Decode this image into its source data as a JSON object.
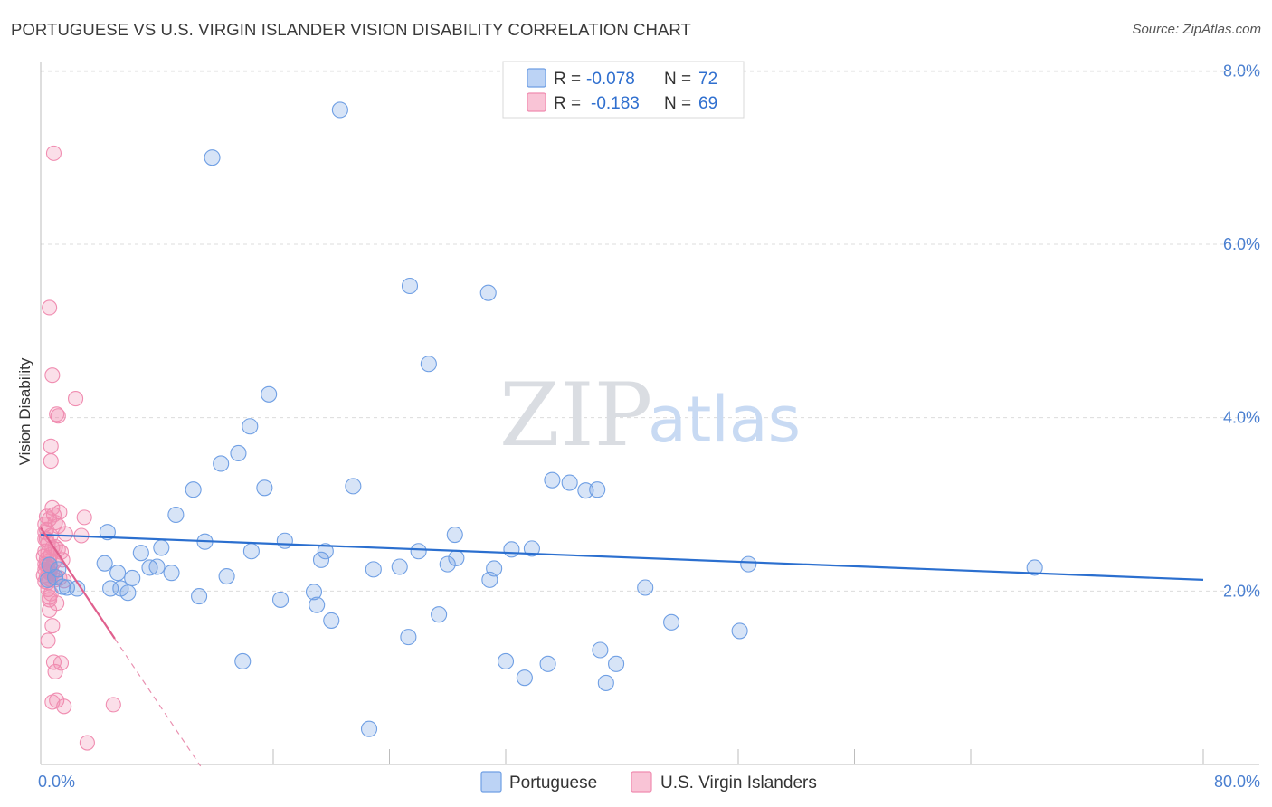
{
  "header": {
    "title": "PORTUGUESE VS U.S. VIRGIN ISLANDER VISION DISABILITY CORRELATION CHART",
    "source": "Source: ZipAtlas.com"
  },
  "watermark": {
    "zip": "ZIP",
    "atlas": "atlas"
  },
  "legend_top": {
    "rows": [
      {
        "r_label": "R =",
        "r_value": "-0.078",
        "n_label": "N =",
        "n_value": "72"
      },
      {
        "r_label": "R =",
        "r_value": "-0.183",
        "n_label": "N =",
        "n_value": "69"
      }
    ]
  },
  "chart_data": {
    "type": "scatter",
    "title": "PORTUGUESE VS U.S. VIRGIN ISLANDER VISION DISABILITY CORRELATION CHART",
    "xlabel": "",
    "ylabel": "Vision Disability",
    "xlim": [
      0,
      80
    ],
    "ylim": [
      0,
      8.4
    ],
    "x_tick_labels": [
      "0.0%",
      "80.0%"
    ],
    "y_ticks": [
      2,
      4,
      6,
      8
    ],
    "y_tick_labels": [
      "2.0%",
      "4.0%",
      "6.0%",
      "8.0%"
    ],
    "legend": [
      "Portuguese",
      "U.S. Virgin Islanders"
    ],
    "colors": {
      "portuguese": "#6f9fe4",
      "virgin": "#f08cb0",
      "portuguese_line": "#2b6fcf",
      "virgin_line": "#e0608e"
    },
    "series": [
      {
        "name": "Portuguese",
        "trend": {
          "x": [
            0,
            80
          ],
          "y": [
            2.65,
            2.13
          ]
        },
        "points": [
          [
            20.6,
            7.55
          ],
          [
            11.8,
            7.0
          ],
          [
            25.4,
            5.52
          ],
          [
            30.8,
            5.44
          ],
          [
            26.7,
            4.62
          ],
          [
            15.7,
            4.27
          ],
          [
            14.4,
            3.9
          ],
          [
            13.6,
            3.59
          ],
          [
            12.4,
            3.47
          ],
          [
            15.4,
            3.19
          ],
          [
            21.5,
            3.21
          ],
          [
            35.2,
            3.28
          ],
          [
            36.4,
            3.25
          ],
          [
            37.5,
            3.16
          ],
          [
            38.3,
            3.17
          ],
          [
            10.5,
            3.17
          ],
          [
            9.3,
            2.88
          ],
          [
            4.6,
            2.68
          ],
          [
            28.5,
            2.65
          ],
          [
            11.3,
            2.57
          ],
          [
            16.8,
            2.58
          ],
          [
            8.3,
            2.5
          ],
          [
            19.6,
            2.46
          ],
          [
            14.5,
            2.46
          ],
          [
            26.0,
            2.46
          ],
          [
            32.4,
            2.48
          ],
          [
            33.8,
            2.49
          ],
          [
            6.9,
            2.44
          ],
          [
            19.3,
            2.36
          ],
          [
            28.6,
            2.38
          ],
          [
            4.4,
            2.32
          ],
          [
            7.5,
            2.27
          ],
          [
            8.0,
            2.28
          ],
          [
            22.9,
            2.25
          ],
          [
            24.7,
            2.28
          ],
          [
            31.2,
            2.26
          ],
          [
            28.0,
            2.31
          ],
          [
            48.7,
            2.31
          ],
          [
            68.4,
            2.27
          ],
          [
            5.3,
            2.21
          ],
          [
            9.0,
            2.21
          ],
          [
            12.8,
            2.17
          ],
          [
            6.3,
            2.15
          ],
          [
            30.9,
            2.13
          ],
          [
            1.0,
            2.16
          ],
          [
            0.5,
            2.13
          ],
          [
            1.5,
            2.05
          ],
          [
            1.8,
            2.04
          ],
          [
            4.8,
            2.03
          ],
          [
            2.5,
            2.03
          ],
          [
            5.5,
            2.03
          ],
          [
            6.0,
            1.98
          ],
          [
            18.8,
            1.99
          ],
          [
            10.9,
            1.94
          ],
          [
            16.5,
            1.9
          ],
          [
            41.6,
            2.04
          ],
          [
            19.0,
            1.84
          ],
          [
            27.4,
            1.73
          ],
          [
            20.0,
            1.66
          ],
          [
            43.4,
            1.64
          ],
          [
            48.1,
            1.54
          ],
          [
            25.3,
            1.47
          ],
          [
            38.5,
            1.32
          ],
          [
            13.9,
            1.19
          ],
          [
            32.0,
            1.19
          ],
          [
            34.9,
            1.16
          ],
          [
            39.6,
            1.16
          ],
          [
            33.3,
            1.0
          ],
          [
            38.9,
            0.94
          ],
          [
            22.6,
            0.41
          ],
          [
            0.6,
            2.3
          ],
          [
            1.2,
            2.25
          ]
        ]
      },
      {
        "name": "U.S. Virgin Islanders",
        "trend": {
          "x": [
            0,
            5.1
          ],
          "y": [
            2.73,
            1.45
          ]
        },
        "trend_dashed": {
          "x": [
            5.1,
            11.0
          ],
          "y": [
            1.45,
            -0.02
          ]
        },
        "points": [
          [
            0.9,
            7.05
          ],
          [
            0.6,
            5.27
          ],
          [
            0.8,
            4.49
          ],
          [
            2.4,
            4.22
          ],
          [
            1.1,
            4.04
          ],
          [
            1.2,
            4.02
          ],
          [
            0.7,
            3.67
          ],
          [
            0.7,
            3.5
          ],
          [
            0.8,
            2.96
          ],
          [
            1.3,
            2.91
          ],
          [
            3.0,
            2.85
          ],
          [
            0.4,
            2.86
          ],
          [
            0.6,
            2.83
          ],
          [
            1.0,
            2.79
          ],
          [
            1.2,
            2.75
          ],
          [
            0.4,
            2.71
          ],
          [
            0.3,
            2.68
          ],
          [
            0.7,
            2.64
          ],
          [
            1.7,
            2.66
          ],
          [
            2.8,
            2.64
          ],
          [
            0.3,
            2.6
          ],
          [
            0.5,
            2.55
          ],
          [
            0.8,
            2.5
          ],
          [
            1.0,
            2.51
          ],
          [
            1.2,
            2.48
          ],
          [
            0.3,
            2.46
          ],
          [
            0.5,
            2.44
          ],
          [
            0.7,
            2.42
          ],
          [
            0.2,
            2.4
          ],
          [
            0.4,
            2.37
          ],
          [
            0.6,
            2.35
          ],
          [
            0.9,
            2.33
          ],
          [
            0.3,
            2.31
          ],
          [
            0.5,
            2.28
          ],
          [
            0.7,
            2.26
          ],
          [
            0.3,
            2.25
          ],
          [
            0.5,
            2.23
          ],
          [
            0.8,
            2.2
          ],
          [
            0.2,
            2.18
          ],
          [
            0.4,
            2.16
          ],
          [
            0.6,
            2.14
          ],
          [
            1.0,
            2.13
          ],
          [
            0.3,
            2.11
          ],
          [
            0.5,
            2.1
          ],
          [
            1.3,
            2.15
          ],
          [
            1.6,
            2.12
          ],
          [
            0.4,
            2.3
          ],
          [
            0.6,
            2.21
          ],
          [
            0.6,
            1.93
          ],
          [
            0.6,
            1.9
          ],
          [
            1.1,
            1.86
          ],
          [
            0.6,
            1.78
          ],
          [
            0.8,
            1.6
          ],
          [
            0.5,
            1.43
          ],
          [
            0.9,
            1.18
          ],
          [
            1.4,
            1.17
          ],
          [
            1.0,
            1.07
          ],
          [
            0.8,
            0.72
          ],
          [
            1.1,
            0.74
          ],
          [
            1.6,
            0.67
          ],
          [
            5.0,
            0.69
          ],
          [
            3.2,
            0.25
          ],
          [
            0.5,
            2.02
          ],
          [
            0.4,
            2.6
          ],
          [
            0.9,
            2.88
          ],
          [
            1.4,
            2.45
          ],
          [
            0.3,
            2.77
          ],
          [
            0.7,
            1.97
          ],
          [
            1.5,
            2.36
          ]
        ]
      }
    ]
  }
}
